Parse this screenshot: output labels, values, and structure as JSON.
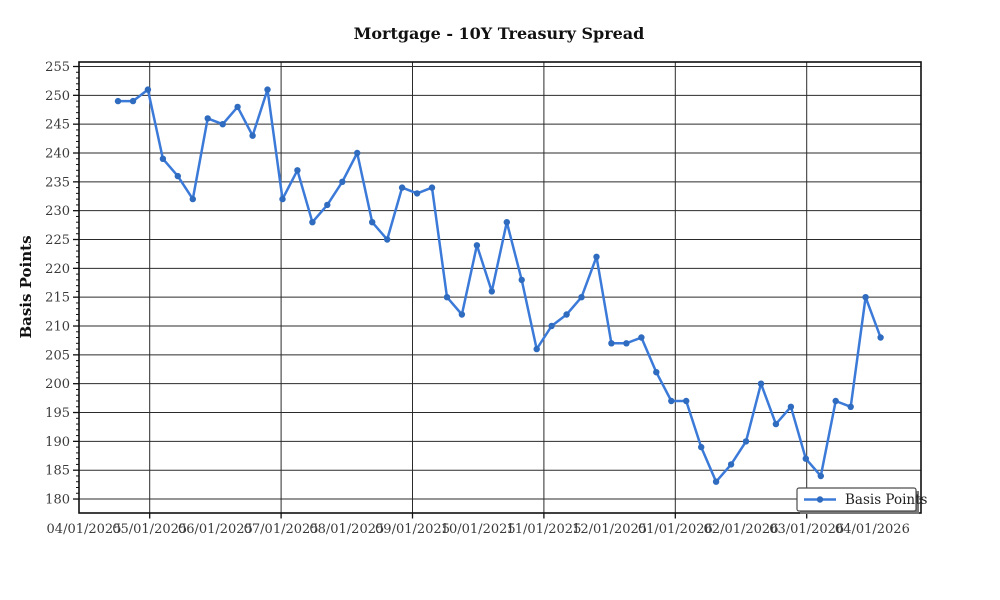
{
  "window": {
    "background": "#ffffff"
  },
  "chart_data": {
    "type": "line",
    "title": "Mortgage - 10Y Treasury Spread",
    "xlabel": "",
    "ylabel": "Basis Points",
    "grid": true,
    "legend": {
      "label": "Basis Points",
      "position": "lower right",
      "shadow": true
    },
    "x_tick_labels": [
      "04/01/2025",
      "05/01/2025",
      "06/01/2025",
      "07/01/2025",
      "08/01/2025",
      "09/01/2025",
      "10/01/2025",
      "11/01/2025",
      "12/01/2025",
      "01/01/2026",
      "02/01/2026",
      "03/01/2026",
      "04/01/2026"
    ],
    "x_gridline_label_indices": [
      1,
      3,
      5,
      7,
      9,
      11
    ],
    "y_tick_labels": [
      255,
      250,
      245,
      240,
      235,
      230,
      225,
      220,
      215,
      210,
      205,
      200,
      195,
      190,
      185,
      180
    ],
    "y_minor_tick_step": 1,
    "ylim": [
      177.5,
      255.8
    ],
    "series": [
      {
        "name": "Basis Points",
        "frequency": "weekly",
        "values": [
          249,
          249,
          251,
          239,
          236,
          232,
          246,
          245,
          248,
          243,
          251,
          232,
          237,
          228,
          231,
          235,
          240,
          228,
          225,
          234,
          233,
          234,
          215,
          212,
          224,
          216,
          228,
          218,
          206,
          210,
          212,
          215,
          222,
          207,
          207,
          208,
          202,
          197,
          197,
          189,
          183,
          186,
          190,
          200,
          193,
          196,
          187,
          184,
          197,
          196,
          215,
          208
        ]
      }
    ],
    "colors": {
      "line": "#3b7ad8",
      "marker": "#2f6bbf",
      "grid": "#2b2b2b",
      "spine": "#111111",
      "tick_text": "#3a3a3a",
      "legend_shadow": "#777777",
      "legend_border": "#4d4d4d",
      "background": "#ffffff"
    }
  }
}
